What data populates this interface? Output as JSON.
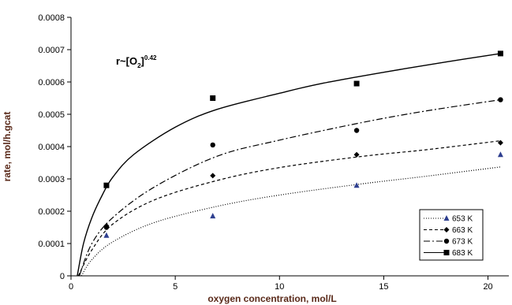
{
  "chart_data": {
    "type": "scatter",
    "xlabel": "oxygen concentration, mol/L",
    "ylabel": "rate, mol/h.gcat",
    "xlim": [
      0,
      21
    ],
    "ylim": [
      0,
      0.0008
    ],
    "x_ticks": [
      0,
      5,
      10,
      15,
      20
    ],
    "x_tick_labels": [
      "0",
      "5",
      "10",
      "15",
      "20"
    ],
    "y_ticks": [
      0,
      0.0001,
      0.0002,
      0.0003,
      0.0004,
      0.0005,
      0.0006,
      0.0007,
      0.0008
    ],
    "y_tick_labels": [
      "0",
      "0.0001",
      "0.0002",
      "0.0003",
      "0.0004",
      "0.0005",
      "0.0006",
      "0.0007",
      "0.0008"
    ],
    "grid": false,
    "legend_position": "bottom-right",
    "annotation": {
      "base": "r~[O",
      "sub": "2",
      "close": "]",
      "sup": "0.42"
    },
    "series": [
      {
        "name": "653 K",
        "marker": "triangle",
        "marker_color": "#2e3f8f",
        "line_dash": "1,2",
        "x": [
          1.7,
          6.8,
          13.7,
          20.6
        ],
        "y": [
          0.000125,
          0.000185,
          0.00028,
          0.000375
        ],
        "fit_points": [
          [
            0.5,
            0.0
          ],
          [
            1.0,
            5e-05
          ],
          [
            2.0,
            0.000105
          ],
          [
            4.0,
            0.000165
          ],
          [
            7.0,
            0.000215
          ],
          [
            10.0,
            0.00025
          ],
          [
            14.0,
            0.000285
          ],
          [
            17.0,
            0.000308
          ],
          [
            20.6,
            0.000337
          ]
        ]
      },
      {
        "name": "663 K",
        "marker": "diamond",
        "marker_color": "#000000",
        "line_dash": "4,3",
        "x": [
          1.7,
          6.8,
          13.7,
          20.6
        ],
        "y": [
          0.000155,
          0.00031,
          0.000375,
          0.000412
        ],
        "fit_points": [
          [
            0.35,
            0.0
          ],
          [
            1.0,
            8e-05
          ],
          [
            2.0,
            0.00016
          ],
          [
            4.0,
            0.000235
          ],
          [
            7.0,
            0.000295
          ],
          [
            10.0,
            0.000335
          ],
          [
            14.0,
            0.00037
          ],
          [
            17.0,
            0.00039
          ],
          [
            20.6,
            0.000418
          ]
        ]
      },
      {
        "name": "673 K",
        "marker": "circle",
        "marker_color": "#000000",
        "line_dash": "8,3,2,3",
        "x": [
          1.7,
          6.8,
          13.7,
          20.6
        ],
        "y": [
          0.00015,
          0.000405,
          0.00045,
          0.000545
        ],
        "fit_points": [
          [
            0.4,
            0.0
          ],
          [
            1.0,
            0.0001
          ],
          [
            2.0,
            0.00018
          ],
          [
            4.0,
            0.000275
          ],
          [
            7.0,
            0.00037
          ],
          [
            10.0,
            0.00042
          ],
          [
            14.0,
            0.000475
          ],
          [
            17.0,
            0.00051
          ],
          [
            20.6,
            0.000545
          ]
        ]
      },
      {
        "name": "683 K",
        "marker": "square",
        "marker_color": "#000000",
        "line_dash": "",
        "x": [
          1.7,
          6.8,
          13.7,
          20.6
        ],
        "y": [
          0.00028,
          0.00055,
          0.000595,
          0.000688
        ],
        "fit_points": [
          [
            0.3,
            0.0
          ],
          [
            0.6,
            0.0001
          ],
          [
            1.0,
            0.00018
          ],
          [
            1.5,
            0.00025
          ],
          [
            2.0,
            0.000305
          ],
          [
            3.0,
            0.000375
          ],
          [
            5.0,
            0.00046
          ],
          [
            7.0,
            0.000515
          ],
          [
            10.0,
            0.000565
          ],
          [
            12.0,
            0.000595
          ],
          [
            15.0,
            0.00063
          ],
          [
            18.0,
            0.000662
          ],
          [
            20.6,
            0.000688
          ]
        ]
      }
    ]
  }
}
